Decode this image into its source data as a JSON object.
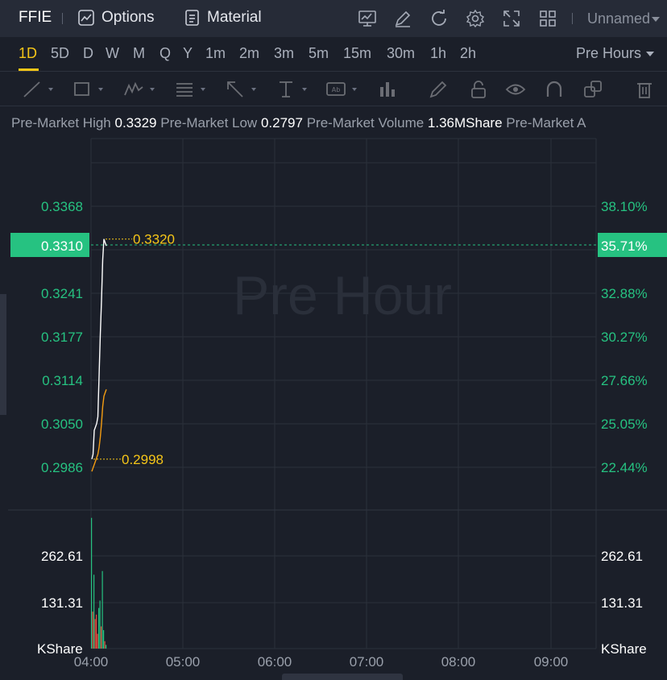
{
  "header": {
    "symbol": "FFIE",
    "options_label": "Options",
    "material_label": "Material",
    "layout_name": "Unnamed",
    "icons": [
      "chart-monitor-icon",
      "edit-icon",
      "refresh-icon",
      "settings-icon",
      "fullscreen-icon",
      "grid-layout-icon"
    ]
  },
  "intervals": {
    "items": [
      "1D",
      "5D",
      "D",
      "W",
      "M",
      "Q",
      "Y",
      "1m",
      "2m",
      "3m",
      "5m",
      "15m",
      "30m",
      "1h",
      "2h"
    ],
    "active": "1D",
    "session_select": "Pre Hours"
  },
  "toolbar": {
    "tools": [
      "trend-line-icon",
      "rectangle-icon",
      "pattern-icon",
      "fib-icon",
      "arrow-icon",
      "text-measure-icon",
      "annotation-icon",
      "bar-chart-icon",
      "pencil-icon",
      "lock-icon",
      "eye-icon",
      "magnet-icon",
      "layers-icon",
      "trash-icon"
    ]
  },
  "stats": {
    "high_label": "Pre-Market High",
    "high_value": "0.3329",
    "low_label": "Pre-Market Low",
    "low_value": "0.2797",
    "volume_label": "Pre-Market Volume",
    "volume_value": "1.36MShare",
    "truncated_label": "Pre-Market A"
  },
  "chart_data": {
    "type": "line",
    "watermark": "Pre Hour",
    "x_ticks": [
      "04:00",
      "05:00",
      "06:00",
      "07:00",
      "08:00",
      "09:00"
    ],
    "price_ticks": [
      "0.3368",
      "0.3241",
      "0.3177",
      "0.3114",
      "0.3050",
      "0.2986"
    ],
    "percent_ticks": [
      "38.10%",
      "32.88%",
      "30.27%",
      "27.66%",
      "25.05%",
      "22.44%"
    ],
    "current_price": "0.3310",
    "current_percent": "35.71%",
    "high_marker": "0.3320",
    "low_marker": "0.2998",
    "volume_ticks": [
      "262.61",
      "131.31"
    ],
    "volume_unit": "KShare",
    "price_range": [
      0.2922,
      0.3432
    ],
    "series": [
      {
        "color": "#ffffff",
        "points": [
          [
            0,
            0.2998
          ],
          [
            1,
            0.3005
          ],
          [
            2,
            0.304
          ],
          [
            3,
            0.3045
          ],
          [
            4,
            0.305
          ],
          [
            5,
            0.306
          ],
          [
            6,
            0.312
          ],
          [
            7,
            0.318
          ],
          [
            8,
            0.323
          ],
          [
            9,
            0.329
          ],
          [
            10,
            0.332
          ],
          [
            11,
            0.3315
          ],
          [
            12,
            0.331
          ]
        ]
      },
      {
        "color": "#f39c12",
        "points": [
          [
            0,
            0.298
          ],
          [
            1,
            0.2985
          ],
          [
            2,
            0.299
          ],
          [
            3,
            0.2995
          ],
          [
            4,
            0.3
          ],
          [
            5,
            0.3005
          ],
          [
            6,
            0.3015
          ],
          [
            7,
            0.303
          ],
          [
            8,
            0.305
          ],
          [
            9,
            0.3075
          ],
          [
            10,
            0.309
          ],
          [
            11,
            0.3095
          ],
          [
            12,
            0.31
          ]
        ]
      }
    ],
    "volume_max": 360,
    "volumes": [
      {
        "v": 354,
        "c": "#26c281"
      },
      {
        "v": 100,
        "c": "#e74c3c"
      },
      {
        "v": 200,
        "c": "#26c281"
      },
      {
        "v": 80,
        "c": "#e74c3c"
      },
      {
        "v": 92,
        "c": "#e74c3c"
      },
      {
        "v": 40,
        "c": "#e74c3c"
      },
      {
        "v": 110,
        "c": "#26c281"
      },
      {
        "v": 130,
        "c": "#26c281"
      },
      {
        "v": 60,
        "c": "#e74c3c"
      },
      {
        "v": 210,
        "c": "#26c281"
      },
      {
        "v": 50,
        "c": "#26c281"
      },
      {
        "v": 20,
        "c": "#e74c3c"
      },
      {
        "v": 10,
        "c": "#26c281"
      }
    ],
    "colors": {
      "up": "#26c281",
      "accent": "#f5c518",
      "grid": "#2b303b"
    }
  }
}
